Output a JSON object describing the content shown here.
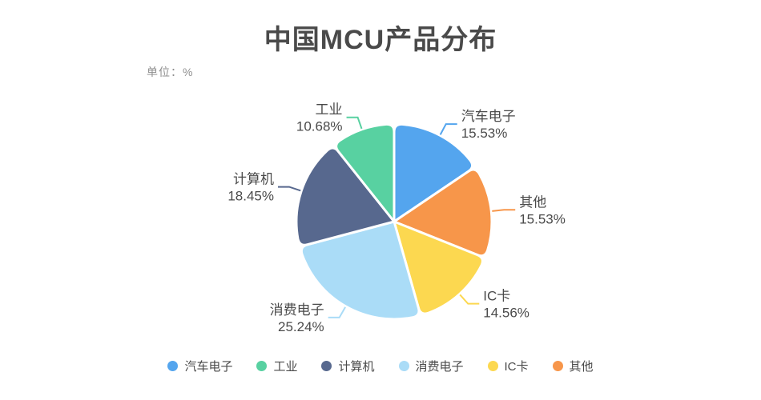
{
  "title": "中国MCU产品分布",
  "unit_label": "单位：%",
  "chart_data": {
    "type": "pie",
    "title": "中国MCU产品分布",
    "unit": "%",
    "start_angle": "top",
    "direction": "clockwise",
    "label_format": "{name} {value}%",
    "legend_position": "bottom",
    "items": [
      {
        "label": "汽车电子",
        "value": 15.53,
        "color": "#54A5EE"
      },
      {
        "label": "其他",
        "value": 15.53,
        "color": "#F7964A"
      },
      {
        "label": "IC卡",
        "value": 14.56,
        "color": "#FCD850"
      },
      {
        "label": "消费电子",
        "value": 25.24,
        "color": "#AADCF7"
      },
      {
        "label": "计算机",
        "value": 18.45,
        "color": "#57688E"
      },
      {
        "label": "工业",
        "value": 10.68,
        "color": "#58D1A1"
      }
    ],
    "legend": [
      "汽车电子",
      "工业",
      "计算机",
      "消费电子",
      "IC卡",
      "其他"
    ]
  },
  "colors": {
    "title_text": "#4a4a4a",
    "label_text": "#4a4a4a",
    "unit_text": "#8f8f8f",
    "background": "#ffffff",
    "slice_border": "#ffffff"
  }
}
